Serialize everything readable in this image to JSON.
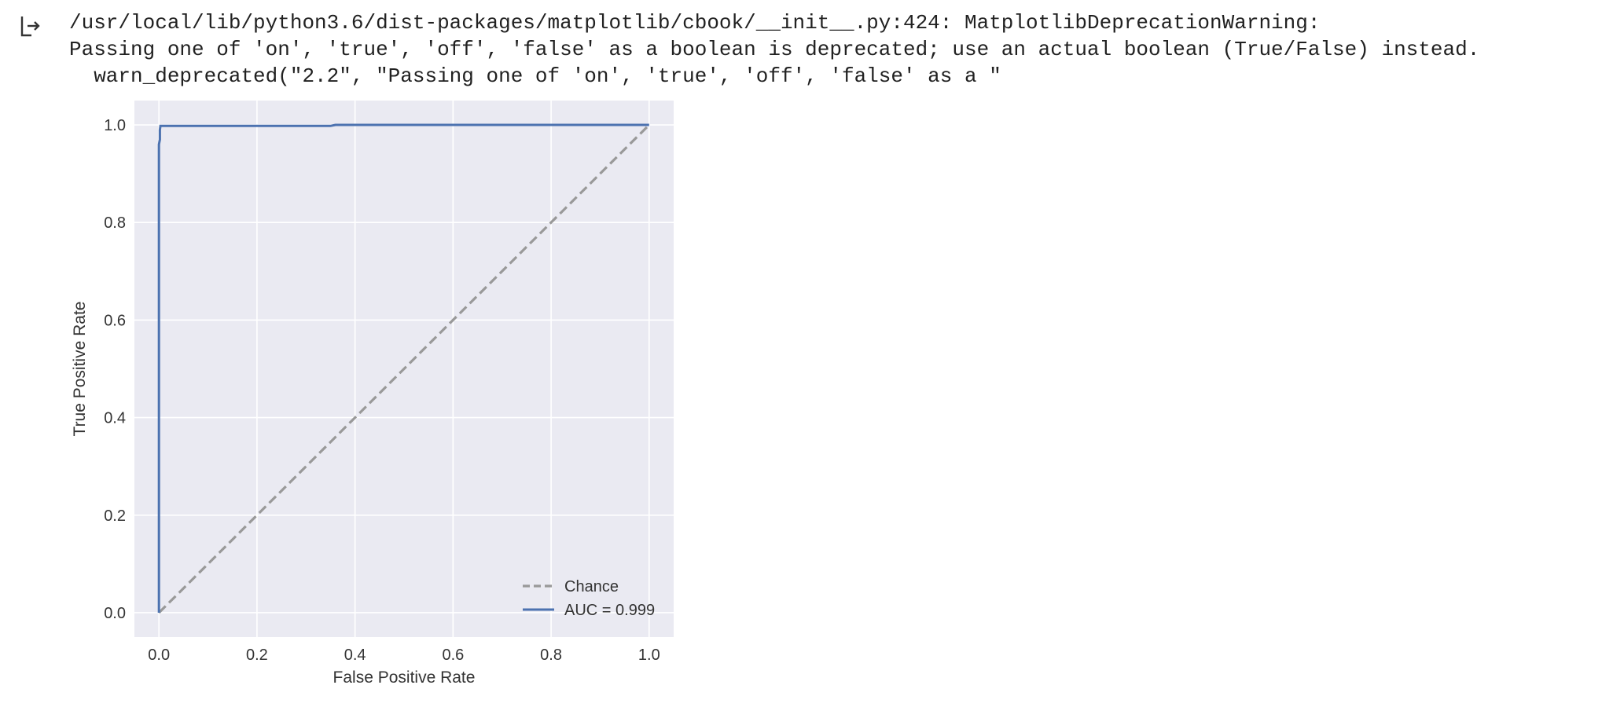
{
  "output": {
    "icon": "output-arrow-icon",
    "stderr_lines": [
      "/usr/local/lib/python3.6/dist-packages/matplotlib/cbook/__init__.py:424: MatplotlibDeprecationWarning:",
      "Passing one of 'on', 'true', 'off', 'false' as a boolean is deprecated; use an actual boolean (True/False) instead.",
      "  warn_deprecated(\"2.2\", \"Passing one of 'on', 'true', 'off', 'false' as a \""
    ]
  },
  "colors": {
    "plot_background": "#eaeaf2",
    "grid": "#ffffff",
    "roc_line": "#4c72b0",
    "chance_line": "#999999"
  },
  "chart_data": {
    "type": "line",
    "title": "",
    "xlabel": "False Positive Rate",
    "ylabel": "True Positive Rate",
    "xlim": [
      -0.05,
      1.05
    ],
    "ylim": [
      -0.05,
      1.05
    ],
    "xticks": [
      "0.0",
      "0.2",
      "0.4",
      "0.6",
      "0.8",
      "1.0"
    ],
    "yticks": [
      "0.0",
      "0.2",
      "0.4",
      "0.6",
      "0.8",
      "1.0"
    ],
    "grid": true,
    "legend_position": "lower-right",
    "series": [
      {
        "name": "Chance",
        "style": "dashed",
        "x": [
          0.0,
          1.0
        ],
        "y": [
          0.0,
          1.0
        ]
      },
      {
        "name": "AUC = 0.999",
        "style": "solid",
        "x": [
          0.0,
          0.0,
          0.002,
          0.002,
          0.003,
          0.35,
          0.36,
          1.0
        ],
        "y": [
          0.0,
          0.96,
          0.97,
          0.99,
          0.998,
          0.998,
          1.0,
          1.0
        ]
      }
    ]
  }
}
